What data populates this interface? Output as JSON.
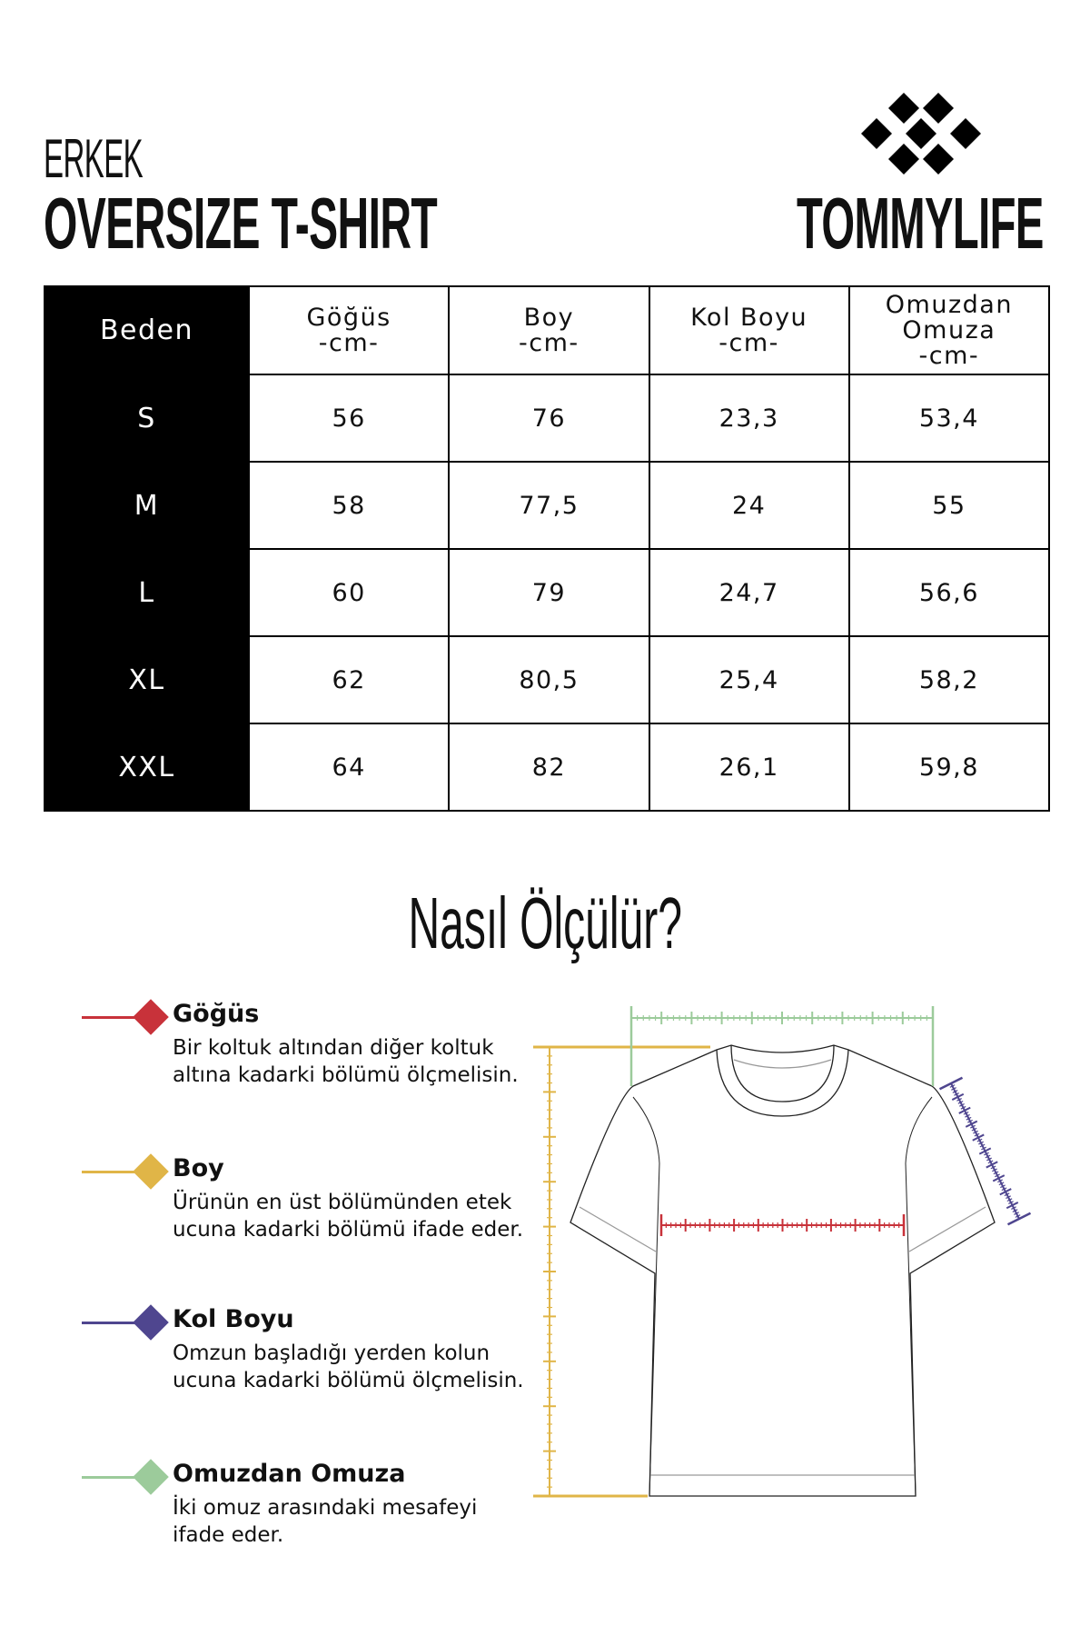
{
  "header": {
    "subtitle": "ERKEK",
    "title": "OVERSIZE T-SHIRT",
    "brand": "TOMMYLIFE"
  },
  "table": {
    "columns": [
      [
        "Beden"
      ],
      [
        "Göğüs",
        "-cm-"
      ],
      [
        "Boy",
        "-cm-"
      ],
      [
        "Kol Boyu",
        "-cm-"
      ],
      [
        "Omuzdan",
        "Omuza",
        "-cm-"
      ]
    ],
    "rows": [
      [
        "S",
        "56",
        "76",
        "23,3",
        "53,4"
      ],
      [
        "M",
        "58",
        "77,5",
        "24",
        "55"
      ],
      [
        "L",
        "60",
        "79",
        "24,7",
        "56,6"
      ],
      [
        "XL",
        "62",
        "80,5",
        "25,4",
        "58,2"
      ],
      [
        "XXL",
        "64",
        "82",
        "26,1",
        "59,8"
      ]
    ]
  },
  "howto": {
    "title": "Nasıl Ölçülür?"
  },
  "legend": [
    {
      "title": "Göğüs",
      "desc": "Bir koltuk altından diğer koltuk altına kadarki bölümü ölçmelisin.",
      "color": "#c8323a"
    },
    {
      "title": "Boy",
      "desc": "Ürünün en üst bölümünden etek ucuna kadarki bölümü ifade eder.",
      "color": "#e0b547"
    },
    {
      "title": "Kol Boyu",
      "desc": "Omzun başladığı yerden kolun ucuna kadarki bölümü ölçmelisin.",
      "color": "#4f468f"
    },
    {
      "title": "Omuzdan Omuza",
      "desc": "İki omuz arasındaki mesafeyi ifade eder.",
      "color": "#9ccb9b"
    }
  ]
}
